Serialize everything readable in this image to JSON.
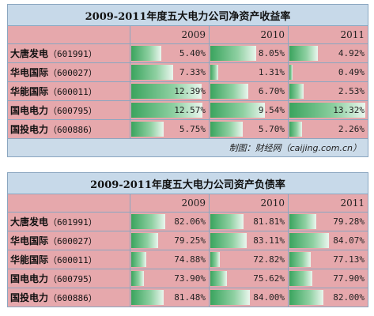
{
  "table1": {
    "title": "2009-2011年度五大电力公司净资产收益率",
    "years": [
      "2009",
      "2010",
      "2011"
    ],
    "rows": [
      {
        "name": "大唐发电",
        "code": "（601991）",
        "values": [
          "5.40%",
          "8.05%",
          "4.92%"
        ],
        "levels": [
          0.4,
          0.6,
          0.37
        ]
      },
      {
        "name": "华电国际",
        "code": "（600027）",
        "values": [
          "7.33%",
          "1.31%",
          "0.49%"
        ],
        "levels": [
          0.55,
          0.1,
          0.04
        ]
      },
      {
        "name": "华能国际",
        "code": "（600011）",
        "values": [
          "12.39%",
          "6.70%",
          "2.53%"
        ],
        "levels": [
          0.93,
          0.5,
          0.19
        ]
      },
      {
        "name": "国电电力",
        "code": "（600795）",
        "values": [
          "12.57%",
          "9.54%",
          "13.32%"
        ],
        "levels": [
          0.94,
          0.72,
          1.0
        ]
      },
      {
        "name": "国投电力",
        "code": "（600886）",
        "values": [
          "5.75%",
          "5.70%",
          "2.26%"
        ],
        "levels": [
          0.43,
          0.43,
          0.17
        ]
      }
    ],
    "source": "制图：财经网（caijing.com.cn）"
  },
  "table2": {
    "title": "2009-2011年度五大电力公司资产负债率",
    "years": [
      "2009",
      "2010",
      "2011"
    ],
    "rows": [
      {
        "name": "大唐发电",
        "code": "（601991）",
        "values": [
          "82.06%",
          "81.81%",
          "79.28%"
        ],
        "levels": [
          0.45,
          0.44,
          0.35
        ]
      },
      {
        "name": "华电国际",
        "code": "（600027）",
        "values": [
          "79.25%",
          "83.11%",
          "84.07%"
        ],
        "levels": [
          0.35,
          0.48,
          0.52
        ]
      },
      {
        "name": "华能国际",
        "code": "（600011）",
        "values": [
          "74.88%",
          "72.82%",
          "77.13%"
        ],
        "levels": [
          0.2,
          0.13,
          0.28
        ]
      },
      {
        "name": "国电电力",
        "code": "（600795）",
        "values": [
          "73.90%",
          "75.62%",
          "77.90%"
        ],
        "levels": [
          0.17,
          0.22,
          0.3
        ]
      },
      {
        "name": "国投电力",
        "code": "（600886）",
        "values": [
          "81.48%",
          "84.00%",
          "82.00%"
        ],
        "levels": [
          0.43,
          0.52,
          0.45
        ]
      }
    ]
  }
}
